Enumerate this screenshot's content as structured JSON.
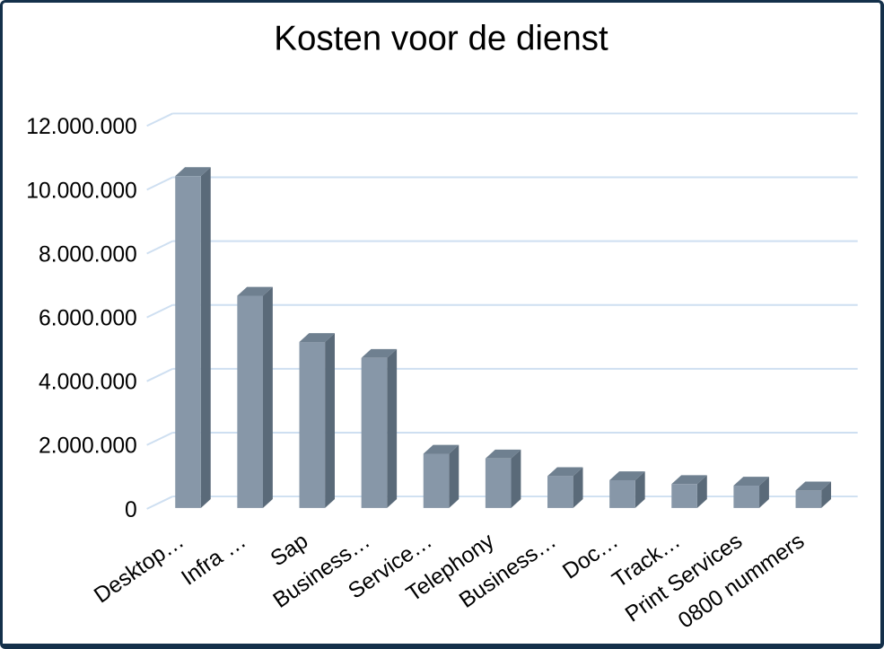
{
  "window": {
    "background": "#ffffff",
    "border_color": "#14304a"
  },
  "chart_data": {
    "type": "bar",
    "style": "3d-column",
    "title": "Kosten voor de dienst",
    "xlabel": "",
    "ylabel": "",
    "legend": "none",
    "grid": true,
    "categories": [
      "Desktop…",
      "Infra …",
      "Sap",
      "Business…",
      "Service…",
      "Telephony",
      "Business…",
      "Doc…",
      "Track…",
      "Print Services",
      "0800 nummers"
    ],
    "values": [
      10400000,
      6650000,
      5200000,
      4700000,
      1700000,
      1550000,
      1000000,
      870000,
      750000,
      700000,
      550000
    ],
    "y_ticks": [
      0,
      2000000,
      4000000,
      6000000,
      8000000,
      10000000,
      12000000
    ],
    "y_tick_labels": [
      "0",
      "2.000.000",
      "4.000.000",
      "6.000.000",
      "8.000.000",
      "10.000.000",
      "12.000.000"
    ],
    "ylim": [
      0,
      12000000
    ],
    "colors": {
      "bar_front": "#8797a8",
      "bar_top": "#6f8090",
      "bar_side": "#5a6a79",
      "gridline": "#cedff1",
      "text": "#000000",
      "background": "#ffffff"
    }
  }
}
